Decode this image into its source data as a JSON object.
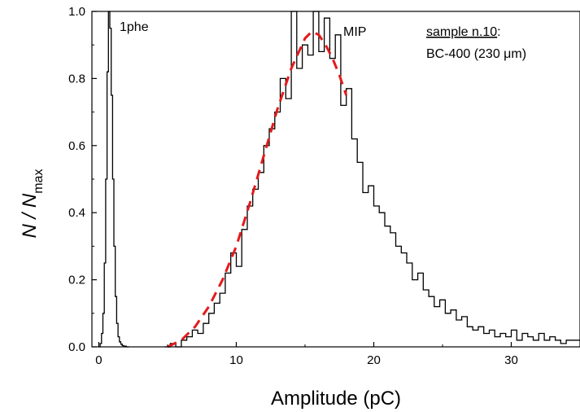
{
  "chart_data": {
    "type": "line",
    "xlabel": "Amplitude (pC)",
    "ylabel_main": "N / N",
    "ylabel_sub": "max",
    "xlim": [
      -0.5,
      35
    ],
    "ylim": [
      0,
      1.0
    ],
    "xticks": [
      0,
      10,
      20,
      30
    ],
    "xtick_labels": [
      "0",
      "10",
      "20",
      "30"
    ],
    "yticks": [
      0.0,
      0.2,
      0.4,
      0.6,
      0.8,
      1.0
    ],
    "ytick_labels": [
      "0.0",
      "0.2",
      "0.4",
      "0.6",
      "0.8",
      "1.0"
    ],
    "grid": false,
    "colors": {
      "histogram": "#000000",
      "fit": "#e41a1c"
    },
    "annotations": {
      "single_photoelectron_peak": "1phe",
      "minimum_ionizing_peak": "MIP",
      "sample_label": "sample n.10",
      "sample_colon": ":",
      "sample_material": "BC-400 (230 μm)"
    },
    "series": [
      {
        "name": "",
        "style": "step",
        "x": [
          0.0,
          0.1,
          0.2,
          0.3,
          0.4,
          0.5,
          0.6,
          0.7,
          0.8,
          0.9,
          1.0,
          1.1,
          1.2,
          1.3,
          1.4,
          1.5,
          1.6,
          1.7,
          1.8,
          2.0
        ],
        "y": [
          0.0,
          0.01,
          0.04,
          0.1,
          0.25,
          0.5,
          0.82,
          1.0,
          0.95,
          0.75,
          0.5,
          0.3,
          0.15,
          0.07,
          0.03,
          0.015,
          0.008,
          0.004,
          0.002,
          0.0
        ]
      },
      {
        "name": "",
        "style": "step",
        "x": [
          4.8,
          5.2,
          5.6,
          6.0,
          6.4,
          6.8,
          7.2,
          7.6,
          8.0,
          8.4,
          8.8,
          9.2,
          9.6,
          10.0,
          10.4,
          10.8,
          11.2,
          11.6,
          12.0,
          12.4,
          12.8,
          13.2,
          13.6,
          14.0,
          14.4,
          14.8,
          15.2,
          15.6,
          16.0,
          16.4,
          16.8,
          17.2,
          17.6,
          18.0,
          18.4,
          18.8,
          19.2,
          19.6,
          20.0,
          20.4,
          20.8,
          21.2,
          21.6,
          22.0,
          22.4,
          22.8,
          23.2,
          23.6,
          24.0,
          24.4,
          24.8,
          25.2,
          25.6,
          26.0,
          26.4,
          26.8,
          27.2,
          27.6,
          28.0,
          28.4,
          28.8,
          29.2,
          29.6,
          30.0,
          30.4,
          30.8,
          31.2,
          31.6,
          32.0,
          32.4,
          32.8,
          33.2,
          33.6,
          34.0,
          34.4,
          34.8
        ],
        "y": [
          0.0,
          0.01,
          0.0,
          0.02,
          0.03,
          0.05,
          0.04,
          0.07,
          0.1,
          0.13,
          0.16,
          0.22,
          0.28,
          0.24,
          0.35,
          0.42,
          0.47,
          0.52,
          0.6,
          0.65,
          0.7,
          0.8,
          0.74,
          1.0,
          0.83,
          0.9,
          0.87,
          1.0,
          0.88,
          0.98,
          0.86,
          0.93,
          0.72,
          0.77,
          0.62,
          0.55,
          0.46,
          0.48,
          0.42,
          0.4,
          0.36,
          0.34,
          0.3,
          0.28,
          0.25,
          0.2,
          0.22,
          0.17,
          0.15,
          0.12,
          0.14,
          0.1,
          0.11,
          0.08,
          0.09,
          0.06,
          0.05,
          0.06,
          0.04,
          0.05,
          0.03,
          0.04,
          0.03,
          0.05,
          0.02,
          0.04,
          0.03,
          0.02,
          0.04,
          0.02,
          0.03,
          0.02,
          0.01,
          0.02,
          0.02,
          0.02
        ]
      },
      {
        "name": "",
        "style": "dashed-fit",
        "x": [
          5.0,
          6.0,
          7.0,
          8.0,
          9.0,
          10.0,
          11.0,
          12.0,
          13.0,
          14.0,
          15.0,
          15.5,
          16.0,
          16.5,
          17.0,
          17.5,
          18.0
        ],
        "y": [
          0.0,
          0.02,
          0.06,
          0.12,
          0.2,
          0.3,
          0.43,
          0.57,
          0.71,
          0.83,
          0.92,
          0.94,
          0.93,
          0.9,
          0.86,
          0.81,
          0.75
        ]
      }
    ]
  }
}
